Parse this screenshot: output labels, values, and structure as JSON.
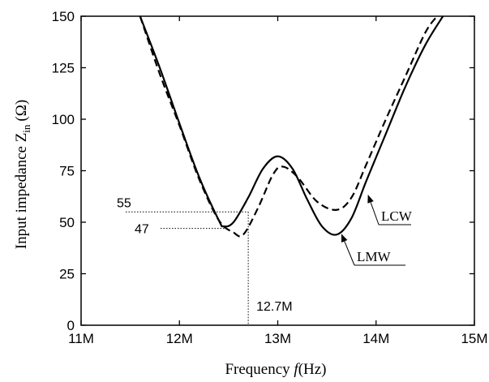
{
  "chart_data": {
    "type": "line",
    "xlabel": {
      "main": "Frequency ",
      "var": "f",
      "unit": "(Hz)"
    },
    "ylabel": {
      "main": "Input impedance Z",
      "sub": "in",
      "unit": "(Ω)"
    },
    "xlim": [
      11,
      15
    ],
    "ylim": [
      0,
      150
    ],
    "x_ticks": [
      {
        "value": 11,
        "label": "11M"
      },
      {
        "value": 12,
        "label": "12M"
      },
      {
        "value": 13,
        "label": "13M"
      },
      {
        "value": 14,
        "label": "14M"
      },
      {
        "value": 15,
        "label": "15M"
      }
    ],
    "y_ticks": [
      {
        "value": 0,
        "label": "0"
      },
      {
        "value": 25,
        "label": "25"
      },
      {
        "value": 50,
        "label": "50"
      },
      {
        "value": 75,
        "label": "75"
      },
      {
        "value": 100,
        "label": "100"
      },
      {
        "value": 125,
        "label": "125"
      },
      {
        "value": 150,
        "label": "150"
      }
    ],
    "grid": false,
    "series": [
      {
        "name": "LMW",
        "style": "solid",
        "x": [
          11.6,
          11.8,
          12.0,
          12.2,
          12.4,
          12.45,
          12.55,
          12.7,
          12.85,
          13.0,
          13.15,
          13.3,
          13.45,
          13.6,
          13.75,
          13.9,
          14.1,
          14.3,
          14.5,
          14.68
        ],
        "y": [
          150,
          125,
          98,
          72,
          51,
          48,
          50,
          62,
          76,
          82,
          76,
          61,
          48,
          44,
          52,
          70,
          93,
          116,
          136,
          150
        ]
      },
      {
        "name": "LCW",
        "style": "dashed",
        "x": [
          11.6,
          11.8,
          12.0,
          12.2,
          12.4,
          12.55,
          12.65,
          12.8,
          12.95,
          13.05,
          13.2,
          13.4,
          13.6,
          13.75,
          13.9,
          14.1,
          14.3,
          14.5,
          14.62
        ],
        "y": [
          150,
          122,
          97,
          71,
          51,
          45,
          44,
          57,
          73,
          77,
          72,
          60,
          56,
          62,
          78,
          100,
          121,
          142,
          150
        ]
      }
    ],
    "annotations": [
      {
        "text": "55",
        "y": 55
      },
      {
        "text": "47",
        "y": 47
      },
      {
        "text": "12.7M",
        "x": 12.7
      }
    ],
    "legend_labels": [
      {
        "text": "LCW",
        "series": "LCW",
        "target_x": 13.92,
        "target_y": 63
      },
      {
        "text": "LMW",
        "series": "LMW",
        "target_x": 13.65,
        "target_y": 44
      }
    ]
  }
}
